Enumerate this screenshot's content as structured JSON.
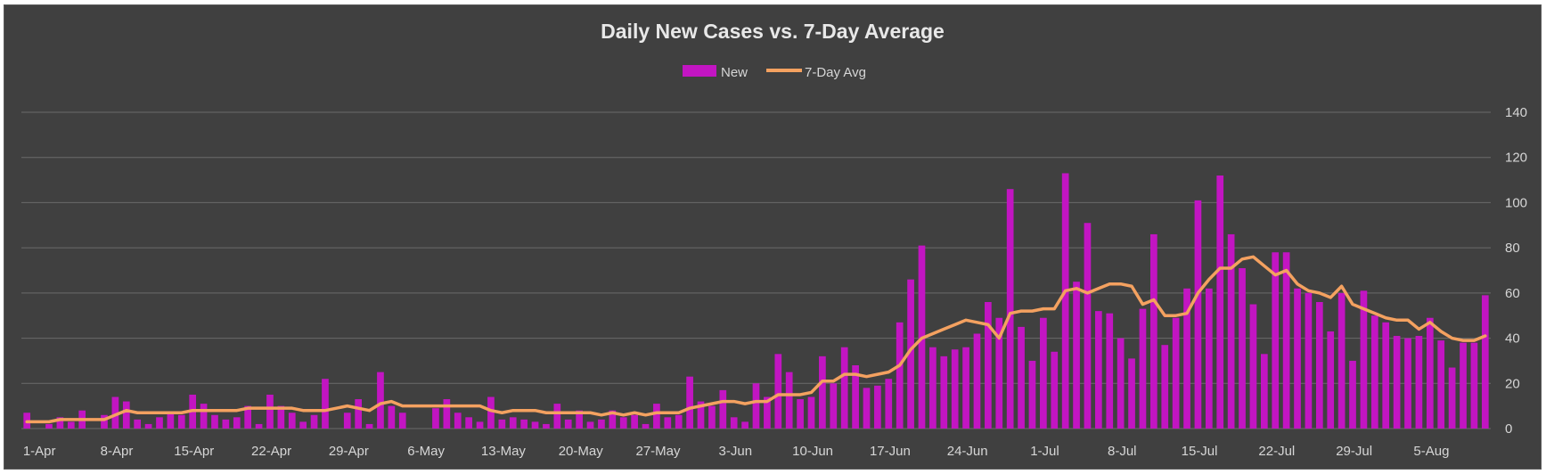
{
  "chart_data": {
    "type": "bar",
    "title": "Daily New Cases vs. 7-Day Average",
    "legend": {
      "placement": "top",
      "entries": [
        "New",
        "7-Day Avg"
      ]
    },
    "colors": {
      "new": "#c215c2",
      "avg": "#f4a160",
      "background": "#404040",
      "grid": "#6a6a6a",
      "text": "#d6d6d6"
    },
    "ylim": [
      0,
      140
    ],
    "y_ticks": [
      0,
      20,
      40,
      60,
      80,
      100,
      120,
      140
    ],
    "y_axis_side": "right",
    "grid": true,
    "x_tick_labels": [
      "1-Apr",
      "8-Apr",
      "15-Apr",
      "22-Apr",
      "29-Apr",
      "6-May",
      "13-May",
      "20-May",
      "27-May",
      "3-Jun",
      "10-Jun",
      "17-Jun",
      "24-Jun",
      "1-Jul",
      "8-Jul",
      "15-Jul",
      "22-Jul",
      "29-Jul",
      "5-Aug"
    ],
    "start_date": "1-Apr",
    "series": [
      {
        "name": "New",
        "type": "bar",
        "values": [
          7,
          0,
          2,
          5,
          3,
          8,
          0,
          6,
          14,
          12,
          4,
          2,
          5,
          7,
          6,
          15,
          11,
          6,
          4,
          5,
          10,
          2,
          15,
          10,
          7,
          3,
          6,
          22,
          0,
          7,
          13,
          2,
          25,
          10,
          7,
          0,
          0,
          9,
          13,
          7,
          5,
          3,
          14,
          4,
          5,
          4,
          3,
          2,
          11,
          4,
          8,
          3,
          4,
          8,
          5,
          6,
          2,
          11,
          5,
          6,
          23,
          12,
          10,
          17,
          5,
          3,
          20,
          14,
          33,
          25,
          13,
          14,
          32,
          20,
          36,
          28,
          18,
          19,
          22,
          47,
          66,
          81,
          36,
          32,
          35,
          36,
          42,
          56,
          49,
          106,
          45,
          30,
          49,
          34,
          113,
          65,
          91,
          52,
          51,
          40,
          31,
          53,
          86,
          37,
          49,
          62,
          101,
          62,
          112,
          86,
          71,
          55,
          33,
          78,
          78,
          62,
          60,
          56,
          43,
          60,
          30,
          61,
          50,
          47,
          41,
          40,
          41,
          49,
          39,
          27,
          38,
          38,
          59
        ]
      },
      {
        "name": "7-Day Avg",
        "type": "line",
        "values": [
          3,
          3,
          3,
          4,
          4,
          4,
          4,
          4,
          6,
          8,
          7,
          7,
          7,
          7,
          7,
          8,
          8,
          8,
          8,
          8,
          9,
          9,
          9,
          9,
          9,
          8,
          8,
          8,
          9,
          10,
          9,
          8,
          11,
          12,
          10,
          10,
          10,
          10,
          10,
          10,
          10,
          10,
          8,
          7,
          8,
          8,
          8,
          7,
          7,
          7,
          7,
          7,
          6,
          7,
          6,
          7,
          6,
          7,
          7,
          7,
          9,
          10,
          11,
          12,
          12,
          11,
          12,
          12,
          15,
          15,
          15,
          16,
          21,
          21,
          24,
          24,
          23,
          24,
          25,
          28,
          35,
          40,
          42,
          44,
          46,
          48,
          47,
          46,
          40,
          51,
          52,
          52,
          53,
          53,
          61,
          62,
          60,
          62,
          64,
          64,
          63,
          55,
          57,
          50,
          50,
          51,
          60,
          66,
          71,
          71,
          75,
          76,
          72,
          68,
          70,
          64,
          61,
          60,
          58,
          63,
          55,
          53,
          51,
          49,
          48,
          48,
          44,
          47,
          43,
          40,
          39,
          39,
          41
        ]
      }
    ]
  }
}
